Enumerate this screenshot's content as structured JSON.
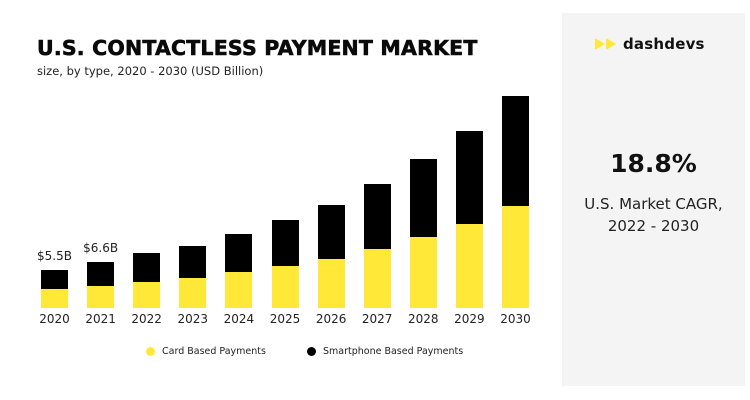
{
  "header": {
    "title": "U.S. CONTACTLESS PAYMENT MARKET",
    "subtitle": "size, by type, 2020 - 2030 (USD Billion)"
  },
  "brand": {
    "name": "dashdevs",
    "icon": "double-play-icon",
    "accent_color": "#ffe838"
  },
  "highlight": {
    "value": "18.8%",
    "label_line1": "U.S. Market CAGR,",
    "label_line2": "2022 - 2030"
  },
  "legend": [
    {
      "label": "Card Based Payments",
      "color": "#ffe838"
    },
    {
      "label": "Smartphone Based Payments",
      "color": "#000000"
    }
  ],
  "value_labels": {
    "2020": "$5.5B",
    "2021": "$6.6B"
  },
  "chart_data": {
    "type": "bar",
    "stacked": true,
    "title": "U.S. CONTACTLESS PAYMENT MARKET",
    "subtitle": "size, by type, 2020 - 2030 (USD Billion)",
    "xlabel": "",
    "ylabel": "USD Billion",
    "categories": [
      "2020",
      "2021",
      "2022",
      "2023",
      "2024",
      "2025",
      "2026",
      "2027",
      "2028",
      "2029",
      "2030"
    ],
    "series": [
      {
        "name": "Card Based Payments",
        "color": "#ffe838",
        "values": [
          2.8,
          3.2,
          3.8,
          4.4,
          5.2,
          6.1,
          7.1,
          8.6,
          10.3,
          12.2,
          14.8
        ]
      },
      {
        "name": "Smartphone Based Payments",
        "color": "#000000",
        "values": [
          2.7,
          3.4,
          4.1,
          4.6,
          5.5,
          6.7,
          7.8,
          9.3,
          11.3,
          13.4,
          15.9
        ]
      }
    ],
    "totals": [
      5.5,
      6.6,
      7.9,
      9.0,
      10.7,
      12.8,
      14.9,
      17.9,
      21.6,
      25.6,
      30.7
    ],
    "annotations": [
      {
        "x": "2020",
        "text": "$5.5B"
      },
      {
        "x": "2021",
        "text": "$6.6B"
      }
    ],
    "side_annotation": {
      "value": "18.8%",
      "text": "U.S. Market CAGR, 2022 - 2030"
    },
    "grid": false,
    "legend_position": "bottom",
    "y_axis_visible": false
  }
}
